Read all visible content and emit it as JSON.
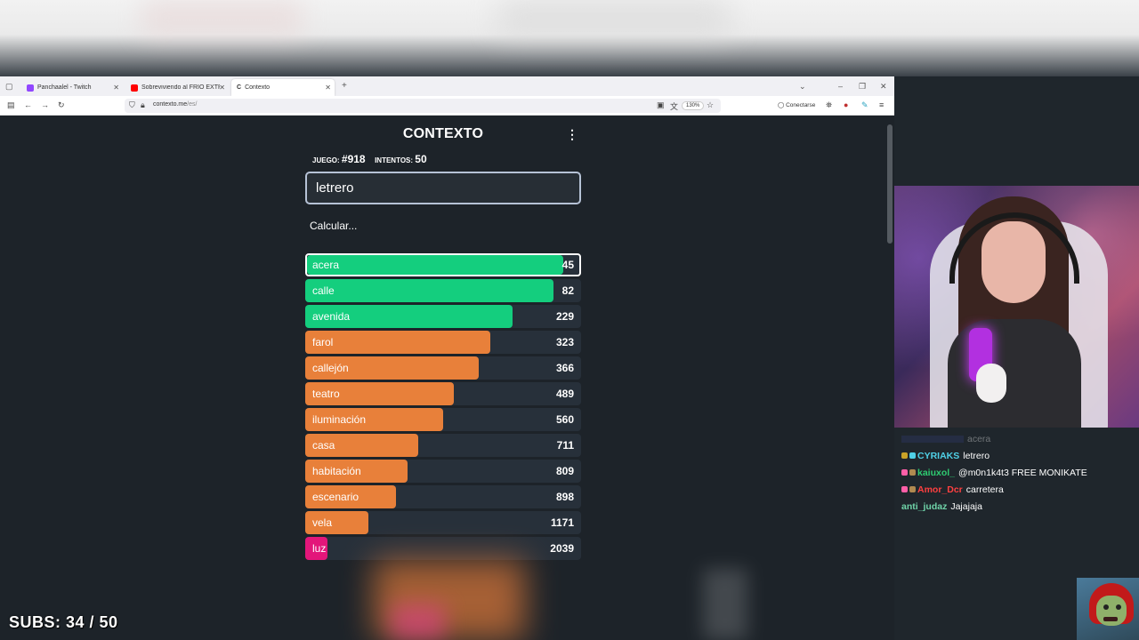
{
  "browser": {
    "tabs": [
      {
        "label": "Panchaalel - Twitch",
        "color": "#9146ff"
      },
      {
        "label": "Sobreviviendo al FRÍO EXTREM",
        "color": "#ff0000"
      },
      {
        "label": "Contexto",
        "color": "#333333"
      }
    ],
    "url_host": "contexto.me",
    "url_path": "/es/",
    "zoom": "130%",
    "connect_label": "Conectarse"
  },
  "game": {
    "title": "CONTEXTO",
    "game_label": "JUEGO:",
    "game_number": "#918",
    "attempts_label": "INTENTOS:",
    "attempts": "50",
    "input_value": "letrero",
    "status": "Calcular..."
  },
  "guesses": [
    {
      "word": "acera",
      "rank": "45",
      "fill": 0.94,
      "color": "#14ce7e"
    },
    {
      "word": "calle",
      "rank": "82",
      "fill": 0.9,
      "color": "#14ce7e"
    },
    {
      "word": "avenida",
      "rank": "229",
      "fill": 0.75,
      "color": "#14ce7e"
    },
    {
      "word": "farol",
      "rank": "323",
      "fill": 0.67,
      "color": "#e8803a"
    },
    {
      "word": "callejón",
      "rank": "366",
      "fill": 0.63,
      "color": "#e8803a"
    },
    {
      "word": "teatro",
      "rank": "489",
      "fill": 0.54,
      "color": "#e8803a"
    },
    {
      "word": "iluminación",
      "rank": "560",
      "fill": 0.5,
      "color": "#e8803a"
    },
    {
      "word": "casa",
      "rank": "711",
      "fill": 0.41,
      "color": "#e8803a"
    },
    {
      "word": "habitación",
      "rank": "809",
      "fill": 0.37,
      "color": "#e8803a"
    },
    {
      "word": "escenario",
      "rank": "898",
      "fill": 0.33,
      "color": "#e8803a"
    },
    {
      "word": "vela",
      "rank": "1171",
      "fill": 0.23,
      "color": "#e8803a"
    },
    {
      "word": "luz",
      "rank": "2039",
      "fill": 0.08,
      "color": "#e3167a"
    }
  ],
  "chat": [
    {
      "user": "",
      "msg": "acera",
      "color": "#5a6bd0",
      "ghost": true
    },
    {
      "user": "CYRIAKS",
      "msg": "letrero",
      "color": "#4fd0e6",
      "ghost": false
    },
    {
      "user": "kaiuxol_",
      "msg": "@m0n1k4t3 FREE MONIKATE",
      "color": "#2ecc71",
      "ghost": false
    },
    {
      "user": "Amor_Dcr",
      "msg": "carretera",
      "color": "#ff4040",
      "ghost": false
    },
    {
      "user": "anti_judaz",
      "msg": "Jajajaja",
      "color": "#6fd3a8",
      "ghost": false
    }
  ],
  "overlay": {
    "subs": "SUBS: 34 / 50"
  }
}
